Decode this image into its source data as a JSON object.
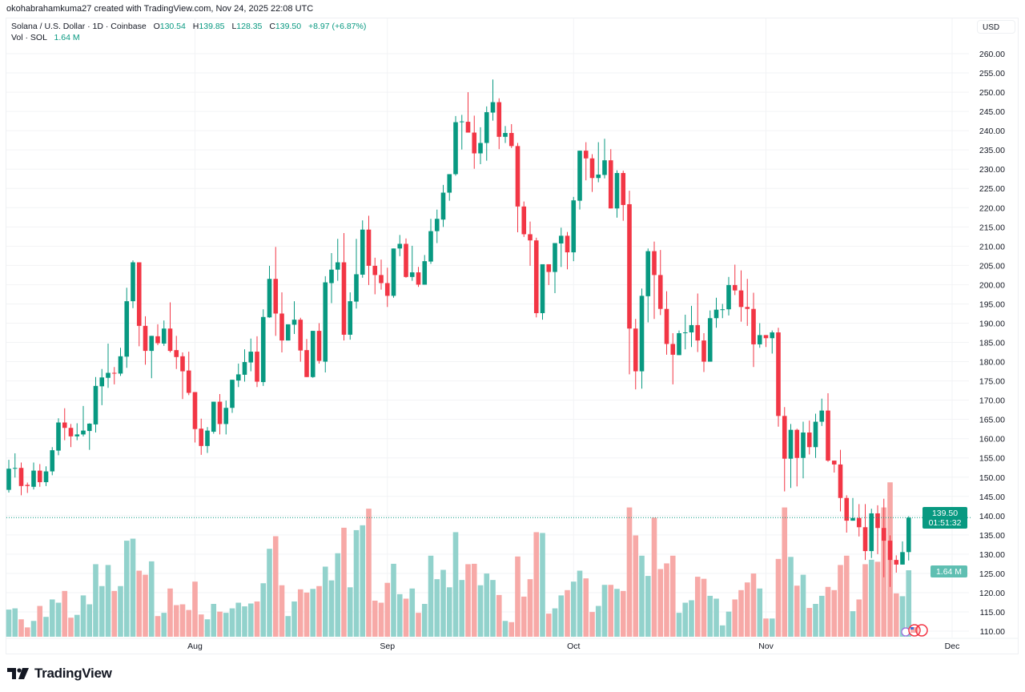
{
  "attribution": "okohabrahamkuma27 created with TradingView.com, Nov 24, 2025 22:08 UTC",
  "legend": {
    "symbol": "Solana / U.S. Dollar · 1D · Coinbase",
    "o_label": "O",
    "o": "130.54",
    "h_label": "H",
    "h": "139.85",
    "l_label": "L",
    "l": "128.35",
    "c_label": "C",
    "c": "139.50",
    "change": "+8.97 (+6.87%)",
    "vol_label": "Vol · SOL",
    "vol": "1.64 M"
  },
  "currency_button": "USD",
  "price_badge": {
    "price": "139.50",
    "countdown": "01:51:32"
  },
  "volume_badge": "1.64 M",
  "brand": "TradingView",
  "colors": {
    "up": "#089981",
    "down": "#F23645",
    "vol_up": "#92D2CC",
    "vol_down": "#F7A9A7",
    "grid": "#F2F3F5"
  },
  "chart_data": {
    "type": "candlestick",
    "ylim": [
      108,
      263
    ],
    "y_ticks": [
      "260.00",
      "255.00",
      "250.00",
      "245.00",
      "240.00",
      "235.00",
      "230.00",
      "225.00",
      "220.00",
      "215.00",
      "210.00",
      "205.00",
      "200.00",
      "195.00",
      "190.00",
      "185.00",
      "180.00",
      "175.00",
      "170.00",
      "165.00",
      "160.00",
      "155.00",
      "150.00",
      "145.00",
      "140.00",
      "135.00",
      "130.00",
      "125.00",
      "120.00",
      "115.00",
      "110.00"
    ],
    "x_ticks": [
      {
        "label": "Aug",
        "bar": 30
      },
      {
        "label": "Sep",
        "bar": 61
      },
      {
        "label": "Oct",
        "bar": 91
      },
      {
        "label": "Nov",
        "bar": 122
      },
      {
        "label": "Dec",
        "bar": 152
      }
    ],
    "grid": true,
    "last_price": 139.5,
    "ohlc": [
      [
        146.7,
        154.5,
        146.0,
        152.2
      ],
      [
        152.2,
        156.2,
        149.9,
        152.4
      ],
      [
        152.4,
        153.8,
        145.3,
        147.7
      ],
      [
        148.0,
        148.6,
        145.9,
        147.7
      ],
      [
        147.5,
        153.8,
        146.8,
        151.7
      ],
      [
        151.7,
        153.4,
        147.5,
        148.7
      ],
      [
        148.7,
        152.8,
        147.7,
        151.5
      ],
      [
        151.5,
        157.8,
        150.5,
        157.0
      ],
      [
        156.9,
        165.3,
        155.7,
        164.2
      ],
      [
        164.2,
        167.9,
        159.6,
        162.8
      ],
      [
        162.8,
        163.8,
        157.8,
        160.6
      ],
      [
        160.6,
        164.0,
        159.6,
        161.1
      ],
      [
        161.1,
        168.5,
        160.6,
        162.1
      ],
      [
        162.0,
        164.0,
        157.1,
        163.9
      ],
      [
        163.7,
        176.0,
        161.6,
        173.7
      ],
      [
        173.6,
        178.1,
        168.7,
        175.9
      ],
      [
        175.8,
        184.7,
        173.2,
        177.1
      ],
      [
        177.1,
        178.6,
        174.1,
        176.9
      ],
      [
        176.9,
        183.6,
        176.3,
        181.4
      ],
      [
        181.3,
        199.2,
        178.4,
        195.7
      ],
      [
        195.7,
        206.3,
        193.9,
        205.8
      ],
      [
        205.8,
        205.8,
        184.0,
        189.3
      ],
      [
        189.3,
        191.8,
        179.2,
        182.8
      ],
      [
        182.8,
        186.7,
        175.7,
        186.7
      ],
      [
        186.6,
        189.7,
        184.3,
        184.8
      ],
      [
        184.7,
        190.7,
        184.1,
        188.6
      ],
      [
        188.6,
        195.4,
        182.4,
        182.8
      ],
      [
        183.0,
        186.7,
        178.1,
        181.2
      ],
      [
        181.4,
        182.4,
        170.3,
        177.5
      ],
      [
        177.7,
        182.6,
        171.3,
        171.9
      ],
      [
        172.1,
        172.1,
        159.0,
        162.5
      ],
      [
        162.6,
        165.2,
        155.8,
        158.1
      ],
      [
        158.1,
        163.0,
        156.3,
        162.1
      ],
      [
        161.8,
        169.6,
        161.3,
        169.6
      ],
      [
        169.6,
        171.6,
        161.1,
        163.8
      ],
      [
        163.8,
        169.9,
        161.1,
        168.0
      ],
      [
        168.0,
        175.3,
        166.7,
        175.3
      ],
      [
        175.1,
        179.5,
        173.4,
        176.7
      ],
      [
        176.6,
        183.2,
        174.8,
        179.9
      ],
      [
        179.8,
        186.0,
        177.5,
        182.6
      ],
      [
        182.6,
        186.6,
        173.4,
        174.8
      ],
      [
        174.7,
        193.6,
        173.7,
        191.6
      ],
      [
        191.5,
        204.9,
        191.4,
        201.5
      ],
      [
        201.5,
        209.8,
        186.7,
        192.5
      ],
      [
        192.5,
        198.0,
        182.4,
        185.5
      ],
      [
        185.5,
        189.7,
        185.5,
        189.7
      ],
      [
        189.6,
        195.7,
        187.2,
        190.9
      ],
      [
        190.9,
        191.4,
        180.0,
        182.9
      ],
      [
        183.0,
        185.9,
        176.0,
        176.0
      ],
      [
        176.0,
        188.0,
        175.8,
        188.0
      ],
      [
        188.0,
        190.0,
        179.5,
        180.2
      ],
      [
        180.0,
        202.2,
        177.2,
        200.6
      ],
      [
        200.4,
        208.2,
        195.2,
        203.9
      ],
      [
        203.9,
        211.9,
        201.0,
        205.8
      ],
      [
        205.8,
        213.4,
        185.5,
        187.0
      ],
      [
        187.0,
        198.0,
        185.7,
        195.7
      ],
      [
        195.6,
        211.9,
        193.8,
        202.7
      ],
      [
        202.6,
        216.7,
        201.8,
        214.3
      ],
      [
        214.3,
        217.9,
        199.9,
        204.9
      ],
      [
        204.9,
        207.0,
        197.5,
        202.5
      ],
      [
        202.5,
        206.5,
        198.7,
        200.4
      ],
      [
        200.4,
        204.4,
        194.2,
        197.1
      ],
      [
        197.1,
        209.4,
        196.6,
        209.4
      ],
      [
        209.4,
        212.9,
        207.4,
        210.6
      ],
      [
        210.6,
        212.0,
        201.8,
        202.0
      ],
      [
        202.0,
        210.1,
        201.0,
        203.2
      ],
      [
        203.2,
        204.6,
        199.4,
        200.0
      ],
      [
        200.0,
        207.7,
        200.0,
        206.1
      ],
      [
        206.0,
        217.1,
        205.4,
        213.9
      ],
      [
        213.9,
        219.5,
        210.8,
        217.1
      ],
      [
        216.9,
        225.9,
        215.0,
        223.9
      ],
      [
        223.9,
        228.7,
        221.8,
        228.7
      ],
      [
        228.7,
        243.8,
        228.3,
        242.2
      ],
      [
        242.2,
        244.1,
        235.1,
        242.4
      ],
      [
        242.3,
        250.0,
        239.5,
        239.5
      ],
      [
        239.5,
        243.9,
        230.1,
        234.1
      ],
      [
        234.1,
        240.9,
        231.3,
        236.8
      ],
      [
        236.8,
        246.3,
        232.2,
        244.8
      ],
      [
        244.7,
        253.3,
        242.6,
        247.4
      ],
      [
        247.4,
        248.4,
        235.2,
        238.4
      ],
      [
        238.4,
        241.2,
        236.8,
        239.4
      ],
      [
        239.4,
        241.7,
        235.5,
        236.0
      ],
      [
        236.0,
        236.8,
        213.6,
        220.3
      ],
      [
        220.3,
        221.6,
        212.4,
        213.1
      ],
      [
        213.1,
        216.4,
        204.9,
        211.5
      ],
      [
        211.5,
        212.2,
        191.5,
        192.6
      ],
      [
        192.6,
        205.3,
        190.9,
        205.3
      ],
      [
        205.3,
        205.3,
        199.9,
        203.3
      ],
      [
        203.3,
        210.8,
        197.8,
        210.8
      ],
      [
        210.7,
        214.8,
        204.6,
        212.7
      ],
      [
        212.7,
        213.7,
        204.0,
        208.4
      ],
      [
        208.4,
        222.8,
        206.1,
        221.9
      ],
      [
        221.8,
        234.8,
        219.5,
        234.8
      ],
      [
        234.8,
        237.0,
        227.1,
        232.8
      ],
      [
        232.8,
        233.9,
        224.1,
        227.7
      ],
      [
        227.7,
        237.0,
        226.6,
        228.6
      ],
      [
        228.5,
        237.9,
        227.6,
        232.3
      ],
      [
        232.3,
        235.2,
        219.8,
        219.8
      ],
      [
        219.8,
        229.7,
        217.4,
        229.0
      ],
      [
        229.0,
        229.6,
        216.6,
        220.7
      ],
      [
        220.9,
        224.4,
        176.7,
        188.6
      ],
      [
        188.6,
        191.1,
        172.8,
        177.5
      ],
      [
        177.5,
        199.0,
        173.0,
        197.1
      ],
      [
        197.0,
        209.4,
        190.2,
        208.7
      ],
      [
        208.7,
        211.2,
        191.1,
        202.5
      ],
      [
        202.5,
        209.0,
        192.1,
        193.7
      ],
      [
        193.7,
        198.3,
        181.8,
        184.6
      ],
      [
        184.6,
        187.4,
        174.1,
        181.8
      ],
      [
        181.7,
        188.1,
        181.7,
        187.4
      ],
      [
        187.5,
        192.2,
        183.2,
        187.6
      ],
      [
        187.6,
        194.5,
        183.8,
        189.5
      ],
      [
        189.5,
        197.7,
        182.5,
        185.5
      ],
      [
        185.5,
        187.4,
        177.3,
        180.0
      ],
      [
        180.0,
        193.3,
        180.0,
        191.3
      ],
      [
        191.3,
        196.6,
        188.8,
        193.5
      ],
      [
        193.5,
        195.0,
        191.3,
        193.6
      ],
      [
        193.6,
        202.0,
        192.0,
        199.9
      ],
      [
        199.9,
        205.2,
        197.3,
        198.5
      ],
      [
        198.5,
        203.7,
        190.4,
        194.2
      ],
      [
        194.2,
        201.5,
        189.3,
        193.7
      ],
      [
        193.7,
        197.9,
        178.6,
        184.5
      ],
      [
        184.5,
        190.0,
        183.6,
        186.9
      ],
      [
        186.9,
        186.9,
        183.8,
        186.1
      ],
      [
        186.1,
        188.1,
        182.1,
        187.6
      ],
      [
        187.6,
        188.8,
        163.1,
        165.9
      ],
      [
        165.9,
        168.2,
        146.3,
        154.8
      ],
      [
        154.8,
        163.8,
        147.2,
        162.3
      ],
      [
        162.3,
        162.6,
        147.6,
        155.0
      ],
      [
        155.0,
        164.4,
        149.7,
        161.6
      ],
      [
        161.6,
        164.7,
        155.9,
        157.8
      ],
      [
        157.8,
        166.5,
        155.0,
        164.4
      ],
      [
        164.4,
        170.4,
        163.3,
        167.3
      ],
      [
        167.3,
        171.8,
        154.0,
        154.3
      ],
      [
        154.3,
        154.3,
        151.2,
        153.3
      ],
      [
        153.3,
        157.1,
        141.1,
        144.6
      ],
      [
        144.6,
        145.3,
        135.6,
        138.7
      ],
      [
        138.7,
        144.6,
        138.7,
        139.4
      ],
      [
        139.4,
        143.0,
        134.6,
        137.0
      ],
      [
        137.0,
        143.0,
        128.5,
        130.8
      ],
      [
        130.8,
        141.8,
        129.0,
        140.6
      ],
      [
        140.6,
        142.7,
        130.0,
        136.8
      ],
      [
        136.8,
        144.4,
        124.0,
        133.5
      ],
      [
        133.5,
        134.9,
        121.5,
        128.5
      ],
      [
        128.5,
        129.7,
        125.2,
        127.3
      ],
      [
        127.3,
        133.3,
        127.3,
        130.53
      ],
      [
        130.54,
        139.85,
        128.35,
        139.5
      ]
    ],
    "volume_millions": [
      0.67,
      0.7,
      0.43,
      0.23,
      0.39,
      0.76,
      0.49,
      0.92,
      0.84,
      1.13,
      0.47,
      0.54,
      1.02,
      0.8,
      1.79,
      1.25,
      1.77,
      1.13,
      1.25,
      2.37,
      2.42,
      1.63,
      1.53,
      1.86,
      0.51,
      0.59,
      1.19,
      0.78,
      0.8,
      0.66,
      1.36,
      0.55,
      0.43,
      0.81,
      0.62,
      0.59,
      0.7,
      0.84,
      0.75,
      0.82,
      0.87,
      1.32,
      2.17,
      2.48,
      1.27,
      0.51,
      0.87,
      1.17,
      1.09,
      1.18,
      1.25,
      1.73,
      1.39,
      2.06,
      2.69,
      1.22,
      2.63,
      2.75,
      3.16,
      0.89,
      0.84,
      1.33,
      1.8,
      1.05,
      0.94,
      1.19,
      0.59,
      0.81,
      2.0,
      1.42,
      1.65,
      1.22,
      2.58,
      1.4,
      1.79,
      1.8,
      1.27,
      1.56,
      1.4,
      1.03,
      0.39,
      0.36,
      1.98,
      0.99,
      1.42,
      2.58,
      2.56,
      0.57,
      0.7,
      1.02,
      1.15,
      1.36,
      1.63,
      1.44,
      0.61,
      0.76,
      1.28,
      1.28,
      1.18,
      1.13,
      3.19,
      2.5,
      2.0,
      1.5,
      2.94,
      1.67,
      1.81,
      2.0,
      0.59,
      0.84,
      0.9,
      1.48,
      1.43,
      1.01,
      0.94,
      0.28,
      0.62,
      0.92,
      1.15,
      1.34,
      1.56,
      1.19,
      0.45,
      0.45,
      1.92,
      3.19,
      1.97,
      1.26,
      1.53,
      0.71,
      0.81,
      1.01,
      1.23,
      1.15,
      1.77,
      2.0,
      0.63,
      0.92,
      1.79,
      1.9,
      1.85,
      3.19,
      3.81,
      1.07,
      1.0,
      1.64
    ]
  }
}
